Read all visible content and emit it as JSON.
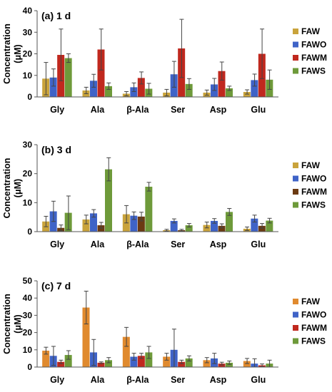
{
  "chart_data": [
    {
      "type": "bar",
      "title": "(a) 1 d",
      "ylabel_lines": [
        "Concentration",
        "(μM)"
      ],
      "ylim": [
        0,
        40
      ],
      "yticks": [
        0,
        10,
        20,
        30,
        40
      ],
      "categories": [
        "Gly",
        "Ala",
        "β-Ala",
        "Ser",
        "Asp",
        "Glu"
      ],
      "legend_position": "right",
      "series": [
        {
          "name": "FAW",
          "color": "#C9A33B",
          "values": [
            8.5,
            3.0,
            1.5,
            2.0,
            2.0,
            2.3
          ],
          "errors": [
            7.5,
            1.5,
            1.0,
            1.5,
            1.2,
            1.0
          ]
        },
        {
          "name": "FAWO",
          "color": "#3F63C7",
          "values": [
            9.0,
            7.5,
            4.5,
            10.5,
            5.8,
            7.8
          ],
          "errors": [
            4.0,
            3.0,
            2.0,
            6.0,
            2.8,
            2.8
          ]
        },
        {
          "name": "FAWM",
          "color": "#C0281E",
          "values": [
            19.5,
            22.0,
            8.8,
            22.5,
            12.0,
            20.0
          ],
          "errors": [
            12.0,
            9.5,
            2.8,
            13.5,
            4.2,
            11.5
          ]
        },
        {
          "name": "FAWS",
          "color": "#6E9A3A",
          "values": [
            18.0,
            5.0,
            3.8,
            6.0,
            4.0,
            8.0
          ],
          "errors": [
            2.0,
            1.5,
            2.5,
            2.5,
            1.0,
            4.5
          ]
        }
      ]
    },
    {
      "type": "bar",
      "title": "(b) 3 d",
      "ylabel_lines": [
        "Concentration",
        "(μM)"
      ],
      "ylim": [
        0,
        30
      ],
      "yticks": [
        0,
        10,
        20,
        30
      ],
      "categories": [
        "Gly",
        "Ala",
        "β-Ala",
        "Ser",
        "Asp",
        "Glu"
      ],
      "legend_position": "right",
      "series": [
        {
          "name": "FAW",
          "color": "#C9A33B",
          "values": [
            3.5,
            4.2,
            6.0,
            0.5,
            2.3,
            1.0
          ],
          "errors": [
            1.8,
            1.5,
            3.0,
            0.3,
            1.0,
            0.6
          ]
        },
        {
          "name": "FAWO",
          "color": "#3F63C7",
          "values": [
            7.0,
            6.3,
            5.5,
            3.7,
            3.7,
            4.5
          ],
          "errors": [
            3.5,
            1.3,
            1.3,
            0.7,
            0.8,
            1.2
          ]
        },
        {
          "name": "FAWM",
          "color": "#6B3A12",
          "values": [
            1.3,
            2.2,
            5.2,
            0.5,
            2.0,
            2.0
          ],
          "errors": [
            1.0,
            1.0,
            1.5,
            0.3,
            0.7,
            0.8
          ]
        },
        {
          "name": "FAWS",
          "color": "#6E9A3A",
          "values": [
            6.5,
            21.5,
            15.5,
            2.2,
            6.8,
            3.8
          ],
          "errors": [
            5.8,
            4.0,
            1.5,
            0.6,
            1.2,
            0.8
          ]
        }
      ]
    },
    {
      "type": "bar",
      "title": "(c) 7 d",
      "ylabel_lines": [
        "Concentration",
        "(μM)"
      ],
      "ylim": [
        0,
        50
      ],
      "yticks": [
        0,
        10,
        20,
        30,
        40,
        50
      ],
      "categories": [
        "Gly",
        "Ala",
        "β-Ala",
        "Ser",
        "Asp",
        "Glu"
      ],
      "legend_position": "right",
      "series": [
        {
          "name": "FAW",
          "color": "#E08A2E",
          "values": [
            9.5,
            34.5,
            17.5,
            6.0,
            4.0,
            3.5
          ],
          "errors": [
            2.0,
            9.5,
            5.5,
            2.0,
            1.5,
            1.5
          ]
        },
        {
          "name": "FAWO",
          "color": "#3F63C7",
          "values": [
            6.5,
            8.5,
            6.0,
            10.0,
            5.0,
            2.0
          ],
          "errors": [
            5.5,
            7.5,
            2.0,
            12.0,
            3.0,
            2.8
          ]
        },
        {
          "name": "FAWM",
          "color": "#C0281E",
          "values": [
            3.0,
            2.5,
            6.5,
            3.0,
            2.0,
            1.0
          ],
          "errors": [
            1.0,
            0.5,
            1.5,
            1.0,
            0.8,
            0.8
          ]
        },
        {
          "name": "FAWS",
          "color": "#6E9A3A",
          "values": [
            7.0,
            4.0,
            8.5,
            5.0,
            2.5,
            2.0
          ],
          "errors": [
            2.5,
            1.5,
            3.5,
            1.5,
            1.0,
            2.0
          ]
        }
      ]
    }
  ]
}
